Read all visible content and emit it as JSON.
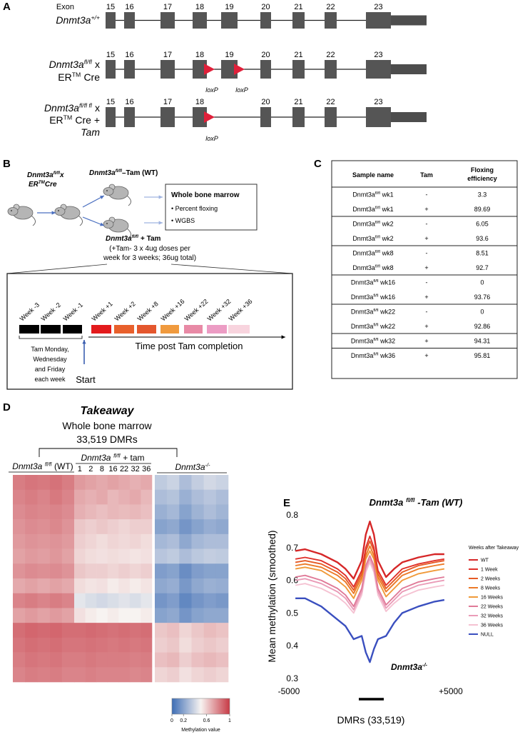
{
  "panel_a": {
    "label": "A",
    "exon_heading": "Exon",
    "rows": [
      {
        "gene": "Dnmt3a",
        "genotype": "+/+",
        "exons": [
          "15",
          "16",
          "17",
          "18",
          "19",
          "20",
          "21",
          "22",
          "23"
        ]
      },
      {
        "gene": "Dnmt3a",
        "genotype": "fl/fl",
        "cross": "x",
        "er": "ER",
        "tm": "TM",
        "cre": "Cre",
        "exons": [
          "15",
          "16",
          "17",
          "18",
          "19",
          "20",
          "21",
          "22",
          "23"
        ],
        "loxp": [
          "loxP",
          "loxP"
        ]
      },
      {
        "gene": "Dnmt3a",
        "genotype": "fl/fl fl",
        "cross": "x",
        "er": "ER",
        "tm": "TM",
        "cre": "Cre +",
        "treatment": "Tam",
        "exons": [
          "15",
          "16",
          "17",
          "18",
          "20",
          "21",
          "22",
          "23"
        ],
        "loxp": [
          "loxP"
        ]
      }
    ]
  },
  "panel_b": {
    "label": "B",
    "parent": {
      "gene": "Dnmt3a",
      "genotype": "fl/fl",
      "cross": "x",
      "er": "ER",
      "tm": "TM",
      "cre": "Cre"
    },
    "control": {
      "gene": "Dnmt3a",
      "genotype": "fl/fl",
      "treatment": "–Tam (WT)"
    },
    "treated": {
      "gene": "Dnmt3a",
      "genotype": "fl/fl",
      "treatment": "+ Tam"
    },
    "dosing": [
      "(+Tam- 3 x 4ug doses per",
      "week for 3 weeks; 36ug total)"
    ],
    "assay": {
      "title": "Whole bone marrow",
      "items": [
        "• Percent floxing",
        "• WGBS"
      ]
    },
    "timeline": {
      "weeks": [
        {
          "label": "Week -3",
          "color": "#000000"
        },
        {
          "label": "Week -2",
          "color": "#000000"
        },
        {
          "label": "Week -1",
          "color": "#000000"
        },
        {
          "label": "Week +1",
          "color": "#e31a1c"
        },
        {
          "label": "Week +2",
          "color": "#e8602c"
        },
        {
          "label": "Week +8",
          "color": "#e4572e"
        },
        {
          "label": "Week +16",
          "color": "#f09a3e"
        },
        {
          "label": "Week +22",
          "color": "#e88aa6"
        },
        {
          "label": "Week +32",
          "color": "#ec9cc4"
        },
        {
          "label": "Week +36",
          "color": "#f8d4de"
        }
      ],
      "tam_note": [
        "Tam Monday,",
        "Wednesday",
        "and Friday",
        "each week"
      ],
      "start": "Start",
      "axis_title": "Time post Tam completion"
    }
  },
  "panel_c": {
    "label": "C",
    "header": [
      "Sample name",
      "Tam",
      [
        "Floxing",
        "efficiency"
      ]
    ],
    "groups": [
      [
        {
          "gene": "Dnmt3a",
          "genotype": "fl/fl",
          "week": "wk1",
          "tam": "-",
          "efficiency": 3.3
        },
        {
          "gene": "Dnmt3a",
          "genotype": "fl/fl",
          "week": "wk1",
          "tam": "+",
          "efficiency": 89.69
        }
      ],
      [
        {
          "gene": "Dnmt3a",
          "genotype": "fl/fl",
          "week": "wk2",
          "tam": "-",
          "efficiency": 6.05
        },
        {
          "gene": "Dnmt3a",
          "genotype": "fl/fl",
          "week": "wk2",
          "tam": "+",
          "efficiency": 93.6
        }
      ],
      [
        {
          "gene": "Dnmt3a",
          "genotype": "fl/fl",
          "week": "wk8",
          "tam": "-",
          "efficiency": 8.51
        },
        {
          "gene": "Dnmt3a",
          "genotype": "fl/fl",
          "week": "wk8",
          "tam": "+",
          "efficiency": 92.7
        }
      ],
      [
        {
          "gene": "Dnmt3a",
          "genotype": "fl/fl",
          "week": "wk16",
          "tam": "-",
          "efficiency": 0
        },
        {
          "gene": "Dnmt3a",
          "genotype": "fl/fl",
          "week": "wk16",
          "tam": "+",
          "efficiency": 93.76
        }
      ],
      [
        {
          "gene": "Dnmt3a",
          "genotype": "fl/fl",
          "week": "wk22",
          "tam": "-",
          "efficiency": 0
        },
        {
          "gene": "Dnmt3a",
          "genotype": "fl/fl",
          "week": "wk22",
          "tam": "+",
          "efficiency": 92.86
        }
      ],
      [
        {
          "gene": "Dnmt3a",
          "genotype": "fl/fl",
          "week": "wk32",
          "tam": "+",
          "efficiency": 94.31
        }
      ],
      [
        {
          "gene": "Dnmt3a",
          "genotype": "fl/fl",
          "week": "wk36",
          "tam": "+",
          "efficiency": 95.81
        }
      ]
    ]
  },
  "chart_data": [
    {
      "type": "heatmap",
      "panel_label": "D",
      "title": "Takeaway",
      "subtitle": [
        "Whole bone marrow",
        "33,519 DMRs"
      ],
      "groups": [
        {
          "gene": "Dnmt3a",
          "genotype": "fl/fl",
          "suffix": "(WT)"
        },
        {
          "gene": "Dnmt3a",
          "genotype": "fl/fl",
          "suffix": "+ tam",
          "weeks": [
            "1",
            "2",
            "8",
            "16",
            "22",
            "32",
            "36"
          ]
        },
        {
          "gene": "Dnmt3a",
          "genotype": "-/-"
        }
      ],
      "matrix": [
        [
          0.82,
          0.84,
          0.83,
          0.85,
          0.82,
          0.74,
          0.72,
          0.7,
          0.72,
          0.7,
          0.68,
          0.7,
          0.35,
          0.38,
          0.3,
          0.36,
          0.4,
          0.38
        ],
        [
          0.8,
          0.82,
          0.8,
          0.83,
          0.8,
          0.7,
          0.68,
          0.7,
          0.66,
          0.68,
          0.7,
          0.66,
          0.3,
          0.32,
          0.25,
          0.3,
          0.33,
          0.3
        ],
        [
          0.78,
          0.8,
          0.79,
          0.8,
          0.78,
          0.68,
          0.66,
          0.64,
          0.66,
          0.65,
          0.66,
          0.64,
          0.25,
          0.28,
          0.2,
          0.26,
          0.3,
          0.27
        ],
        [
          0.76,
          0.78,
          0.77,
          0.79,
          0.76,
          0.62,
          0.6,
          0.62,
          0.6,
          0.58,
          0.6,
          0.6,
          0.2,
          0.22,
          0.15,
          0.2,
          0.24,
          0.22
        ],
        [
          0.74,
          0.76,
          0.75,
          0.76,
          0.74,
          0.6,
          0.58,
          0.56,
          0.58,
          0.57,
          0.58,
          0.56,
          0.28,
          0.3,
          0.22,
          0.28,
          0.3,
          0.3
        ],
        [
          0.72,
          0.74,
          0.73,
          0.75,
          0.72,
          0.58,
          0.56,
          0.55,
          0.56,
          0.55,
          0.54,
          0.55,
          0.33,
          0.35,
          0.3,
          0.34,
          0.36,
          0.35
        ],
        [
          0.76,
          0.78,
          0.77,
          0.78,
          0.76,
          0.62,
          0.6,
          0.6,
          0.58,
          0.6,
          0.58,
          0.6,
          0.18,
          0.2,
          0.12,
          0.18,
          0.2,
          0.2
        ],
        [
          0.7,
          0.72,
          0.7,
          0.72,
          0.7,
          0.56,
          0.54,
          0.55,
          0.52,
          0.54,
          0.52,
          0.54,
          0.22,
          0.24,
          0.16,
          0.22,
          0.25,
          0.24
        ],
        [
          0.8,
          0.82,
          0.8,
          0.82,
          0.8,
          0.45,
          0.42,
          0.4,
          0.42,
          0.44,
          0.42,
          0.45,
          0.15,
          0.18,
          0.1,
          0.15,
          0.18,
          0.16
        ],
        [
          0.72,
          0.74,
          0.72,
          0.74,
          0.72,
          0.55,
          0.52,
          0.5,
          0.52,
          0.5,
          0.5,
          0.52,
          0.2,
          0.22,
          0.15,
          0.2,
          0.22,
          0.22
        ],
        [
          0.86,
          0.88,
          0.87,
          0.88,
          0.86,
          0.86,
          0.87,
          0.86,
          0.85,
          0.86,
          0.85,
          0.86,
          0.62,
          0.64,
          0.58,
          0.62,
          0.65,
          0.63
        ],
        [
          0.84,
          0.86,
          0.85,
          0.86,
          0.84,
          0.84,
          0.85,
          0.84,
          0.83,
          0.84,
          0.83,
          0.84,
          0.6,
          0.62,
          0.56,
          0.6,
          0.62,
          0.6
        ],
        [
          0.82,
          0.84,
          0.83,
          0.84,
          0.82,
          0.82,
          0.83,
          0.82,
          0.82,
          0.82,
          0.81,
          0.82,
          0.64,
          0.66,
          0.6,
          0.64,
          0.66,
          0.64
        ],
        [
          0.8,
          0.82,
          0.81,
          0.82,
          0.8,
          0.8,
          0.81,
          0.8,
          0.8,
          0.8,
          0.79,
          0.8,
          0.58,
          0.6,
          0.55,
          0.58,
          0.6,
          0.58
        ]
      ],
      "colorbar": {
        "title": "Methylation value",
        "clim": [
          0,
          1
        ],
        "ticks": [
          0,
          0.2,
          0.6,
          1
        ],
        "colors": [
          "#3d6db5",
          "#f7f3f1",
          "#c73a45"
        ]
      }
    },
    {
      "type": "line",
      "panel_label": "E",
      "y_label": "Mean methylation (smoothed)",
      "x_label": "DMRs (33,519)",
      "legend_title": "Weeks after Takeaway",
      "annotations": [
        {
          "gene": "Dnmt3a",
          "genotype": "fl/fl",
          "suffix": "-Tam (WT)",
          "color": "#d62728"
        },
        {
          "gene": "Dnmt3a",
          "genotype": "-/-",
          "color": "#3a4fbf"
        }
      ],
      "x": [
        -4600,
        -4000,
        -3000,
        -2000,
        -1500,
        -1000,
        -500,
        -250,
        0,
        250,
        500,
        1000,
        1500,
        2000,
        3000,
        4000,
        4600
      ],
      "xlim": [
        -5000,
        5000
      ],
      "xticks": [
        -5000,
        {
          "value": 5000,
          "label": "+5000"
        }
      ],
      "ylim": [
        0.3,
        0.8
      ],
      "yticks": [
        0.3,
        0.4,
        0.5,
        0.6,
        0.7,
        0.8
      ],
      "series": [
        {
          "name": "WT",
          "color": "#d62728",
          "values": [
            0.69,
            0.695,
            0.68,
            0.655,
            0.635,
            0.605,
            0.66,
            0.74,
            0.78,
            0.74,
            0.66,
            0.61,
            0.635,
            0.655,
            0.67,
            0.68,
            0.68
          ]
        },
        {
          "name": "1 Week",
          "color": "#e0302a",
          "values": [
            0.665,
            0.67,
            0.66,
            0.635,
            0.615,
            0.58,
            0.63,
            0.7,
            0.735,
            0.7,
            0.63,
            0.585,
            0.61,
            0.635,
            0.65,
            0.66,
            0.665
          ]
        },
        {
          "name": "2 Weeks",
          "color": "#e65a25",
          "values": [
            0.655,
            0.66,
            0.65,
            0.625,
            0.605,
            0.57,
            0.62,
            0.69,
            0.72,
            0.69,
            0.62,
            0.575,
            0.6,
            0.625,
            0.645,
            0.655,
            0.66
          ]
        },
        {
          "name": "8 Weeks",
          "color": "#ec7a28",
          "values": [
            0.645,
            0.65,
            0.64,
            0.615,
            0.595,
            0.56,
            0.61,
            0.675,
            0.705,
            0.675,
            0.61,
            0.565,
            0.59,
            0.615,
            0.635,
            0.645,
            0.65
          ]
        },
        {
          "name": "16 Weeks",
          "color": "#f09a3a",
          "values": [
            0.635,
            0.64,
            0.63,
            0.6,
            0.58,
            0.545,
            0.6,
            0.665,
            0.69,
            0.665,
            0.6,
            0.55,
            0.575,
            0.6,
            0.62,
            0.63,
            0.635
          ]
        },
        {
          "name": "22 Weeks",
          "color": "#e07a98",
          "values": [
            0.61,
            0.615,
            0.6,
            0.575,
            0.555,
            0.52,
            0.575,
            0.645,
            0.675,
            0.645,
            0.575,
            0.525,
            0.55,
            0.575,
            0.595,
            0.605,
            0.61
          ]
        },
        {
          "name": "32 Weeks",
          "color": "#ea9cb8",
          "values": [
            0.6,
            0.605,
            0.59,
            0.565,
            0.545,
            0.51,
            0.565,
            0.635,
            0.665,
            0.635,
            0.565,
            0.515,
            0.54,
            0.565,
            0.585,
            0.595,
            0.6
          ]
        },
        {
          "name": "36 Weeks",
          "color": "#f5c2d2",
          "values": [
            0.585,
            0.59,
            0.575,
            0.55,
            0.53,
            0.5,
            0.555,
            0.625,
            0.655,
            0.625,
            0.555,
            0.505,
            0.53,
            0.55,
            0.57,
            0.58,
            0.585
          ]
        },
        {
          "name": "NULL",
          "color": "#3a4fbf",
          "values": [
            0.545,
            0.545,
            0.52,
            0.48,
            0.46,
            0.42,
            0.43,
            0.38,
            0.35,
            0.39,
            0.42,
            0.43,
            0.47,
            0.5,
            0.52,
            0.535,
            0.54
          ]
        }
      ]
    }
  ]
}
